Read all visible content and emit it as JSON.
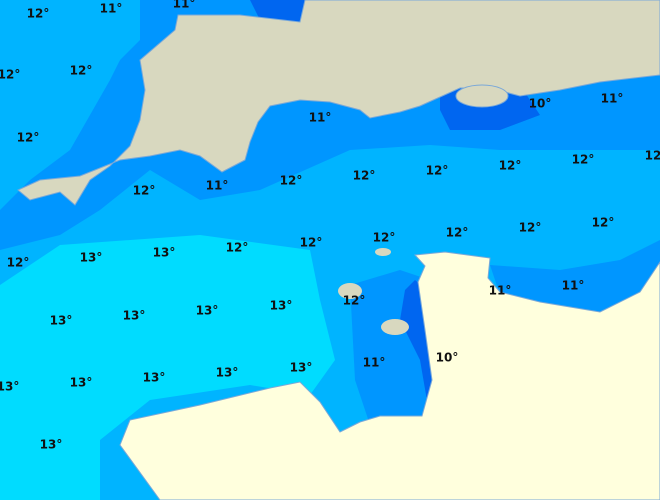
{
  "labels": [
    "12°",
    "11°",
    "11°",
    "12°",
    "12°",
    "12°",
    "11°",
    "10°",
    "11°",
    "12°",
    "11°",
    "12°",
    "12°",
    "12°",
    "12°",
    "12°",
    "12°",
    "12°",
    "13°",
    "13°",
    "12°",
    "12°",
    "12°",
    "12°",
    "12°",
    "12°",
    "11°",
    "11°",
    "13°",
    "13°",
    "13°",
    "13°",
    "12°",
    "11°",
    "10°",
    "13°",
    "13°",
    "13°",
    "13°",
    "13°",
    "13°"
  ]
}
